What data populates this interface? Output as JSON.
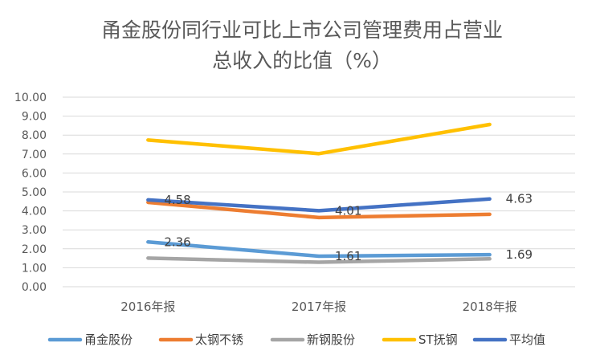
{
  "chart_data": {
    "type": "line",
    "title_lines": [
      "甬金股份同行业可比上市公司管理费用占营业",
      "总收入的比值（%）"
    ],
    "categories": [
      "2016年报",
      "2017年报",
      "2018年报"
    ],
    "ylim": [
      0,
      10
    ],
    "y_ticks": [
      "0.00",
      "1.00",
      "2.00",
      "3.00",
      "4.00",
      "5.00",
      "6.00",
      "7.00",
      "8.00",
      "9.00",
      "10.00"
    ],
    "grid": true,
    "legend_position": "bottom",
    "series": [
      {
        "name": "甬金股份",
        "color": "#5B9BD5",
        "values": [
          2.36,
          1.61,
          1.69
        ],
        "labels": [
          "2.36",
          "1.61",
          "1.69"
        ]
      },
      {
        "name": "太钢不锈",
        "color": "#ED7D31",
        "values": [
          4.45,
          3.65,
          3.82
        ],
        "labels": []
      },
      {
        "name": "新钢股份",
        "color": "#A5A5A5",
        "values": [
          1.51,
          1.29,
          1.47
        ],
        "labels": []
      },
      {
        "name": "ST抚钢",
        "color": "#FFC000",
        "values": [
          7.74,
          7.02,
          8.56
        ],
        "labels": []
      },
      {
        "name": "平均值",
        "color": "#4472C4",
        "values": [
          4.58,
          4.01,
          4.63
        ],
        "labels": [
          "4.58",
          "4.01",
          "4.63"
        ]
      }
    ]
  }
}
